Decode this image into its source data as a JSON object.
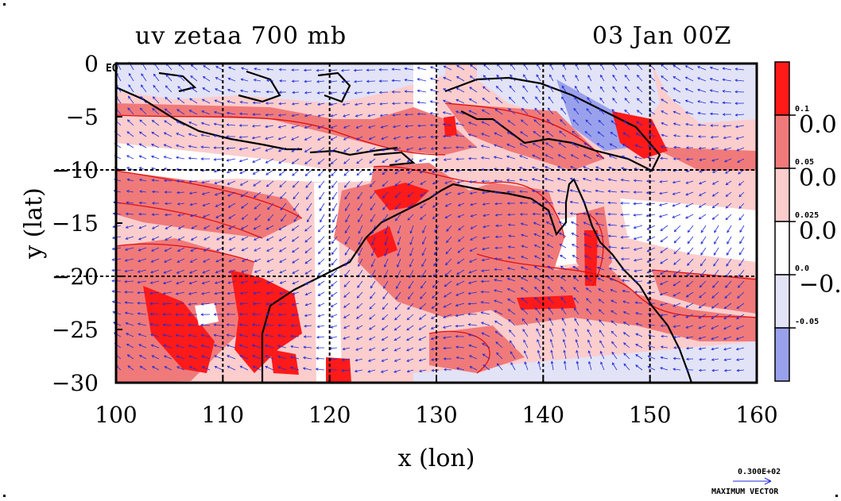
{
  "title_left": "uv zetaa 700 mb",
  "title_right": "03 Jan 00Z",
  "eq_label": "EQ",
  "chart_data": {
    "type": "heatmap",
    "xlabel": "x (lon)",
    "ylabel": "y (lat)",
    "xlim": [
      100,
      160
    ],
    "ylim": [
      -30,
      0
    ],
    "xticks": [
      "100",
      "110",
      "120",
      "130",
      "140",
      "150",
      "160"
    ],
    "yticks": [
      "0",
      "−5",
      "−10",
      "−15",
      "−20",
      "−25",
      "−30"
    ],
    "grid_lines": {
      "lon": [
        110,
        120,
        130,
        140,
        150
      ],
      "lat": [
        -10,
        -20
      ]
    },
    "field": "absolute vorticity (zetaa) shaded, 700 mb wind vectors (uv)",
    "colorbar": {
      "levels": [
        "0.1",
        "0.05",
        "0.025",
        "0.0",
        "-0.05"
      ],
      "side_labels": [
        "0.0",
        "0.0",
        "0.0",
        "−0."
      ],
      "colors": [
        "#ff1a1a",
        "#f07a7a",
        "#fbcdcd",
        "#ffffff",
        "#e2e3f7",
        "#9aa1ec"
      ]
    },
    "max_vector": {
      "value": "0.300E+02",
      "label": "MAXIMUM VECTOR"
    },
    "colors": {
      "vector": "#1f2bd8",
      "coast": "#000000",
      "contour": "#e01010"
    }
  }
}
